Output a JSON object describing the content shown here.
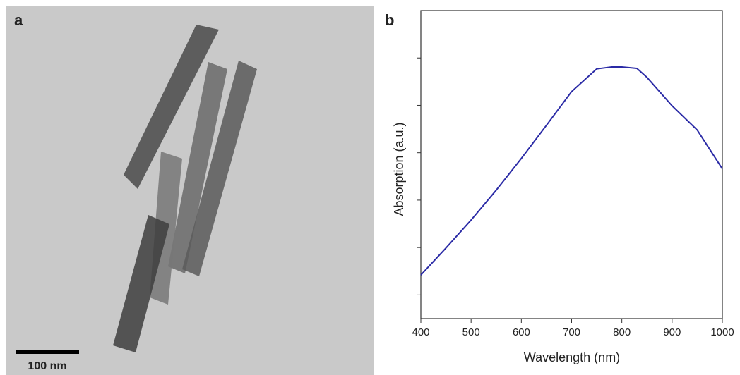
{
  "image_panel": {
    "label": "a",
    "scale_bar": "100 nm"
  },
  "chart_data": {
    "type": "line",
    "panel_label": "b",
    "xlabel": "Wavelength (nm)",
    "ylabel": "Absorption (a.u.)",
    "x": [
      400,
      450,
      500,
      550,
      600,
      650,
      700,
      750,
      780,
      800,
      830,
      850,
      900,
      950,
      1000
    ],
    "series": [
      {
        "color": "#2b2ba6",
        "values": [
          0.42,
          0.99,
          1.58,
          2.21,
          2.88,
          3.58,
          4.29,
          4.77,
          4.81,
          4.81,
          4.78,
          4.59,
          3.99,
          3.48,
          2.66
        ]
      }
    ],
    "xlim": [
      400,
      1000
    ],
    "xticks": [
      400,
      500,
      600,
      700,
      800,
      900,
      1000
    ],
    "ylim": [
      -0.5,
      6
    ],
    "yticks": [
      0,
      1,
      2,
      3,
      4,
      5
    ],
    "ytick_labels": false
  }
}
